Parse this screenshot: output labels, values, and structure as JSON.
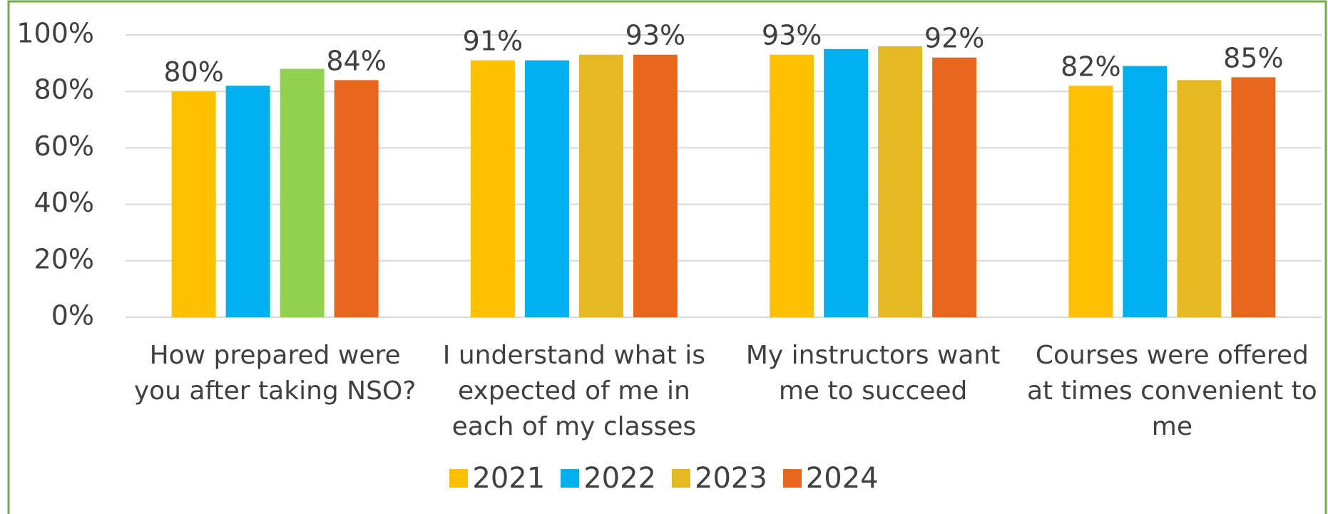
{
  "chart_data": {
    "type": "bar",
    "categories": [
      "How prepared were you after taking NSO?",
      "I understand what is expected of me in each of my classes",
      "My instructors want me to succeed",
      "Courses were offered at times convenient to me"
    ],
    "series": [
      {
        "name": "2021",
        "color": "#ffc000",
        "values": [
          80,
          91,
          93,
          82
        ],
        "value_labels": [
          "80%",
          "91%",
          "93%",
          "82%"
        ]
      },
      {
        "name": "2022",
        "color": "#00b0f0",
        "values": [
          82,
          91,
          95,
          89
        ]
      },
      {
        "name": "2023",
        "color": "#e6b922",
        "colors": [
          "#92d050",
          "#e6b922",
          "#e6b922",
          "#e6b922"
        ],
        "values": [
          88,
          93,
          96,
          84
        ]
      },
      {
        "name": "2024",
        "color": "#e8671c",
        "values": [
          84,
          93,
          92,
          85
        ],
        "value_labels": [
          "84%",
          "93%",
          "92%",
          "85%"
        ]
      }
    ],
    "ylim": [
      0,
      100
    ],
    "yticks": [
      {
        "value": 0,
        "label": "0%"
      },
      {
        "value": 20,
        "label": "20%"
      },
      {
        "value": 40,
        "label": "40%"
      },
      {
        "value": 60,
        "label": "60%"
      },
      {
        "value": 80,
        "label": "80%"
      },
      {
        "value": 100,
        "label": "100%"
      }
    ],
    "grid": true,
    "legend": "bottom"
  }
}
